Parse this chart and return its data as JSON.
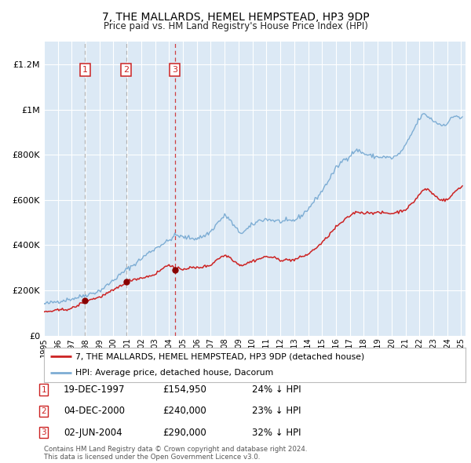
{
  "title": "7, THE MALLARDS, HEMEL HEMPSTEAD, HP3 9DP",
  "subtitle": "Price paid vs. HM Land Registry's House Price Index (HPI)",
  "background_color": "#dce9f5",
  "grid_color": "#ffffff",
  "hpi_color": "#7dadd4",
  "price_color": "#cc2222",
  "ylim": [
    0,
    1300000
  ],
  "xlim_start": 1995.0,
  "xlim_end": 2025.3,
  "yticks": [
    0,
    200000,
    400000,
    600000,
    800000,
    1000000,
    1200000
  ],
  "ytick_labels": [
    "£0",
    "£200K",
    "£400K",
    "£600K",
    "£800K",
    "£1M",
    "£1.2M"
  ],
  "xticks": [
    1995,
    1996,
    1997,
    1998,
    1999,
    2000,
    2001,
    2002,
    2003,
    2004,
    2005,
    2006,
    2007,
    2008,
    2009,
    2010,
    2011,
    2012,
    2013,
    2014,
    2015,
    2016,
    2017,
    2018,
    2019,
    2020,
    2021,
    2022,
    2023,
    2024,
    2025
  ],
  "sale_dates_num": [
    1997.96,
    2000.92,
    2004.42
  ],
  "sale_prices": [
    154950,
    240000,
    290000
  ],
  "sale_labels": [
    "1",
    "2",
    "3"
  ],
  "legend_property": "7, THE MALLARDS, HEMEL HEMPSTEAD, HP3 9DP (detached house)",
  "legend_hpi": "HPI: Average price, detached house, Dacorum",
  "table_data": [
    {
      "num": "1",
      "date": "19-DEC-1997",
      "price": "£154,950",
      "note": "24% ↓ HPI"
    },
    {
      "num": "2",
      "date": "04-DEC-2000",
      "price": "£240,000",
      "note": "23% ↓ HPI"
    },
    {
      "num": "3",
      "date": "02-JUN-2004",
      "price": "£290,000",
      "note": "32% ↓ HPI"
    }
  ],
  "footer": "Contains HM Land Registry data © Crown copyright and database right 2024.\nThis data is licensed under the Open Government Licence v3.0.",
  "title_fontsize": 10,
  "subtitle_fontsize": 8.5
}
